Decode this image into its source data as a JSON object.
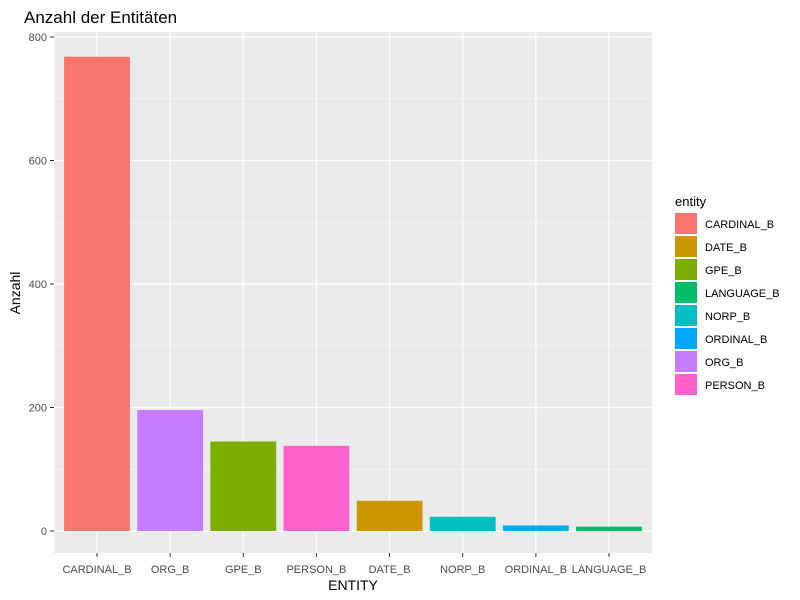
{
  "chart_data": {
    "type": "bar",
    "title": "Anzahl der Entitäten",
    "xlabel": "ENTITY",
    "ylabel": "Anzahl",
    "ylim": [
      0,
      800
    ],
    "yticks": [
      0,
      200,
      400,
      600,
      800
    ],
    "categories": [
      "CARDINAL_B",
      "ORG_B",
      "GPE_B",
      "PERSON_B",
      "DATE_B",
      "NORP_B",
      "ORDINAL_B",
      "LANGUAGE_B"
    ],
    "values": [
      768,
      196,
      145,
      138,
      49,
      23,
      9,
      7
    ],
    "grid": true,
    "legend": {
      "title": "entity",
      "position": "right",
      "entries": [
        "CARDINAL_B",
        "DATE_B",
        "GPE_B",
        "LANGUAGE_B",
        "NORP_B",
        "ORDINAL_B",
        "ORG_B",
        "PERSON_B"
      ]
    },
    "colors": {
      "CARDINAL_B": "#F8766D",
      "DATE_B": "#CD9600",
      "GPE_B": "#7CAE00",
      "LANGUAGE_B": "#00BE67",
      "NORP_B": "#00BFC4",
      "ORDINAL_B": "#00A9FF",
      "ORG_B": "#C77CFF",
      "PERSON_B": "#FF61CC"
    },
    "panel_color": "#EBEBEB",
    "grid_color": "#FFFFFF"
  }
}
